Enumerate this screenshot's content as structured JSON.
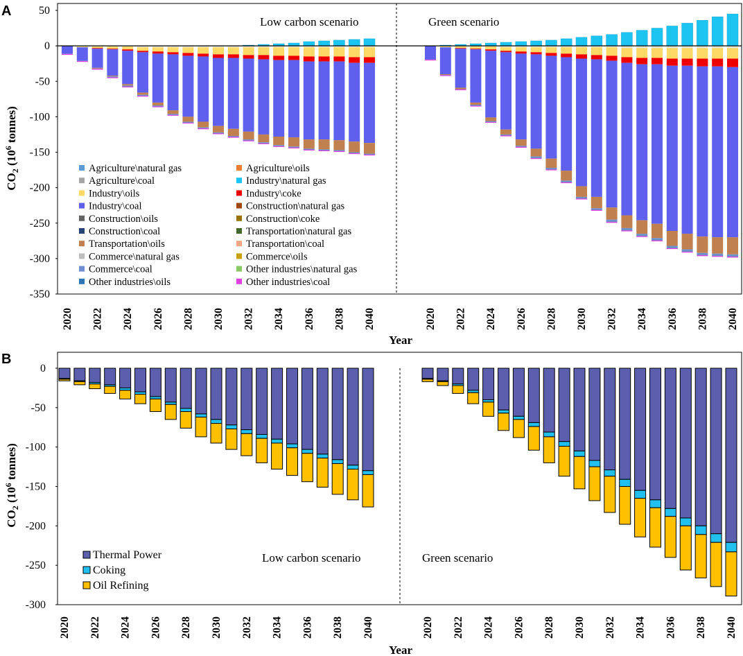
{
  "chart_data": [
    {
      "panel": "A",
      "type": "bar",
      "stacked": true,
      "ylabel": "CO2 (10^6 tonnes)",
      "ylabel_parts": {
        "main": "CO",
        "sub": "2",
        "pre": " (10",
        "sup": "6",
        "post": " tonnes)"
      },
      "xlabel": "Year",
      "ylim": [
        -350,
        50
      ],
      "yticks": [
        50,
        0,
        -50,
        -100,
        -150,
        -200,
        -250,
        -300,
        -350
      ],
      "xtick_labels": [
        "2020",
        "2022",
        "2024",
        "2026",
        "2028",
        "2030",
        "2032",
        "2034",
        "2036",
        "2038",
        "2040"
      ],
      "scenario_labels": [
        "Low carbon scenario",
        "Green scenario"
      ],
      "legend": [
        {
          "name": "Agriculture\\natural gas",
          "color": "#5b9bd5"
        },
        {
          "name": "Agriculture\\oils",
          "color": "#ed7d31"
        },
        {
          "name": "Agriculture\\coal",
          "color": "#a5a5a5"
        },
        {
          "name": "Industry\\natural gas",
          "color": "#1cc4f2"
        },
        {
          "name": "Industry\\oils",
          "color": "#ffd966"
        },
        {
          "name": "Industry\\coke",
          "color": "#ee0000"
        },
        {
          "name": "Industry\\coal",
          "color": "#6060ee"
        },
        {
          "name": "Construction\\natural gas",
          "color": "#9e480e"
        },
        {
          "name": "Construction\\oils",
          "color": "#636363"
        },
        {
          "name": "Construction\\coke",
          "color": "#997300"
        },
        {
          "name": "Construction\\coal",
          "color": "#264478"
        },
        {
          "name": "Transportation\\natural gas",
          "color": "#43682b"
        },
        {
          "name": "Transportation\\oils",
          "color": "#c08050"
        },
        {
          "name": "Transportation\\coal",
          "color": "#f4a582"
        },
        {
          "name": "Commerce\\natural gas",
          "color": "#bfbfbf"
        },
        {
          "name": "Commerce\\oils",
          "color": "#c9a000"
        },
        {
          "name": "Commerce\\coal",
          "color": "#6f8fd0"
        },
        {
          "name": "Other industries\\natural gas",
          "color": "#8cc864"
        },
        {
          "name": "Other industries\\oils",
          "color": "#2e75b6"
        },
        {
          "name": "Other industries\\coal",
          "color": "#e040e0"
        }
      ],
      "years": [
        2020,
        2021,
        2022,
        2023,
        2024,
        2025,
        2026,
        2027,
        2028,
        2029,
        2030,
        2031,
        2032,
        2033,
        2034,
        2035,
        2036,
        2037,
        2038,
        2039,
        2040
      ],
      "scenarios": [
        {
          "name": "Low carbon scenario",
          "industry_natural_gas": [
            0,
            0,
            0,
            0,
            0,
            0,
            0,
            0,
            0,
            0,
            0,
            0,
            1,
            2,
            3,
            4,
            6,
            7,
            8,
            9,
            10
          ],
          "agriculture_coal": [
            0,
            -1,
            -1,
            -1,
            -1,
            -2,
            -2,
            -2,
            -2,
            -2,
            -2,
            -2,
            -2,
            -2,
            -2,
            -2,
            -2,
            -2,
            -2,
            -2,
            -2
          ],
          "industry_oils": [
            0,
            -1,
            -2,
            -3,
            -4,
            -5,
            -6,
            -7,
            -8,
            -9,
            -10,
            -10,
            -11,
            -11,
            -12,
            -12,
            -13,
            -13,
            -13,
            -14,
            -14
          ],
          "industry_coke": [
            0,
            0,
            -1,
            -1,
            -2,
            -2,
            -3,
            -3,
            -4,
            -4,
            -5,
            -5,
            -5,
            -6,
            -6,
            -6,
            -7,
            -7,
            -7,
            -8,
            -8
          ],
          "industry_coal": [
            -11,
            -19,
            -27,
            -37,
            -47,
            -57,
            -69,
            -79,
            -86,
            -92,
            -96,
            -100,
            -103,
            -106,
            -108,
            -109,
            -110,
            -110,
            -111,
            -111,
            -113
          ],
          "transportation_oils": [
            0,
            0,
            -1,
            -1,
            -2,
            -3,
            -4,
            -5,
            -7,
            -8,
            -9,
            -10,
            -11,
            -11,
            -12,
            -13,
            -13,
            -14,
            -14,
            -15,
            -15
          ],
          "others": [
            -1,
            -1,
            -1,
            -2,
            -2,
            -2,
            -2,
            -2,
            -2,
            -2,
            -2,
            -2,
            -2,
            -2,
            -2,
            -2,
            -2,
            -2,
            -2,
            -2,
            -2
          ]
        },
        {
          "name": "Green scenario",
          "industry_natural_gas": [
            0,
            1,
            2,
            3,
            4,
            5,
            6,
            7,
            8,
            10,
            12,
            14,
            16,
            19,
            22,
            25,
            28,
            32,
            36,
            41,
            45
          ],
          "agriculture_coal": [
            0,
            -1,
            -1,
            -1,
            -1,
            -2,
            -2,
            -2,
            -2,
            -2,
            -2,
            -2,
            -2,
            -3,
            -3,
            -3,
            -3,
            -3,
            -3,
            -3,
            -3
          ],
          "industry_oils": [
            0,
            -1,
            -2,
            -3,
            -4,
            -5,
            -6,
            -7,
            -8,
            -9,
            -10,
            -11,
            -12,
            -13,
            -14,
            -14,
            -15,
            -15,
            -15,
            -15,
            -15
          ],
          "industry_coke": [
            0,
            0,
            -1,
            -1,
            -2,
            -2,
            -3,
            -3,
            -4,
            -5,
            -6,
            -6,
            -7,
            -8,
            -9,
            -9,
            -10,
            -10,
            -11,
            -11,
            -12
          ],
          "industry_coal": [
            -19,
            -38,
            -55,
            -75,
            -94,
            -109,
            -121,
            -133,
            -145,
            -160,
            -180,
            -194,
            -207,
            -215,
            -220,
            -225,
            -233,
            -237,
            -240,
            -241,
            -240
          ],
          "transportation_oils": [
            0,
            -1,
            -2,
            -3,
            -5,
            -7,
            -9,
            -11,
            -13,
            -14,
            -15,
            -16,
            -17,
            -18,
            -19,
            -20,
            -21,
            -22,
            -23,
            -23,
            -24
          ],
          "others": [
            -1,
            -1,
            -1,
            -2,
            -2,
            -2,
            -2,
            -3,
            -3,
            -3,
            -3,
            -3,
            -4,
            -4,
            -4,
            -4,
            -4,
            -4,
            -4,
            -4,
            -4
          ]
        }
      ]
    },
    {
      "panel": "B",
      "type": "bar",
      "stacked": true,
      "ylabel": "CO2 (10^6 tonnes)",
      "ylabel_parts": {
        "main": "CO",
        "sub": "2",
        "pre": " (10",
        "sup": "6",
        "post": " tonnes)"
      },
      "xlabel": "Year",
      "ylim": [
        -300,
        0
      ],
      "yticks": [
        0,
        -50,
        -100,
        -150,
        -200,
        -250,
        -300
      ],
      "xtick_labels": [
        "2020",
        "2022",
        "2024",
        "2026",
        "2028",
        "2030",
        "2032",
        "2034",
        "2036",
        "2038",
        "2040"
      ],
      "scenario_labels": [
        "Low carbon scenario",
        "Green scenario"
      ],
      "legend": [
        {
          "name": "Thermal Power",
          "color": "#5b5fad"
        },
        {
          "name": "Coking",
          "color": "#22c0ee"
        },
        {
          "name": "Oil Refining",
          "color": "#ffc000"
        }
      ],
      "years": [
        2020,
        2021,
        2022,
        2023,
        2024,
        2025,
        2026,
        2027,
        2028,
        2029,
        2030,
        2031,
        2032,
        2033,
        2034,
        2035,
        2036,
        2037,
        2038,
        2039,
        2040
      ],
      "scenarios": [
        {
          "name": "Low carbon scenario",
          "thermal_power": [
            -13,
            -16,
            -18,
            -21,
            -25,
            -30,
            -36,
            -43,
            -51,
            -58,
            -65,
            -72,
            -78,
            -84,
            -90,
            -96,
            -103,
            -109,
            -116,
            -123,
            -130
          ],
          "coking": [
            -1,
            -1,
            -2,
            -2,
            -3,
            -3,
            -3,
            -3,
            -4,
            -4,
            -5,
            -5,
            -5,
            -5,
            -5,
            -5,
            -5,
            -5,
            -5,
            -5,
            -5
          ],
          "oil_refining": [
            -2,
            -4,
            -6,
            -9,
            -11,
            -12,
            -16,
            -19,
            -21,
            -25,
            -25,
            -26,
            -28,
            -31,
            -33,
            -35,
            -36,
            -37,
            -39,
            -39,
            -41
          ]
        },
        {
          "name": "Green scenario",
          "thermal_power": [
            -13,
            -16,
            -20,
            -28,
            -40,
            -53,
            -61,
            -69,
            -81,
            -93,
            -105,
            -117,
            -129,
            -141,
            -155,
            -167,
            -178,
            -190,
            -200,
            -210,
            -221
          ],
          "coking": [
            -1,
            -1,
            -2,
            -3,
            -3,
            -4,
            -4,
            -5,
            -6,
            -6,
            -7,
            -8,
            -8,
            -9,
            -10,
            -10,
            -10,
            -10,
            -11,
            -11,
            -12
          ],
          "oil_refining": [
            -3,
            -5,
            -10,
            -14,
            -18,
            -22,
            -23,
            -30,
            -33,
            -38,
            -41,
            -43,
            -46,
            -48,
            -49,
            -50,
            -52,
            -56,
            -55,
            -56,
            -56
          ]
        }
      ]
    }
  ]
}
